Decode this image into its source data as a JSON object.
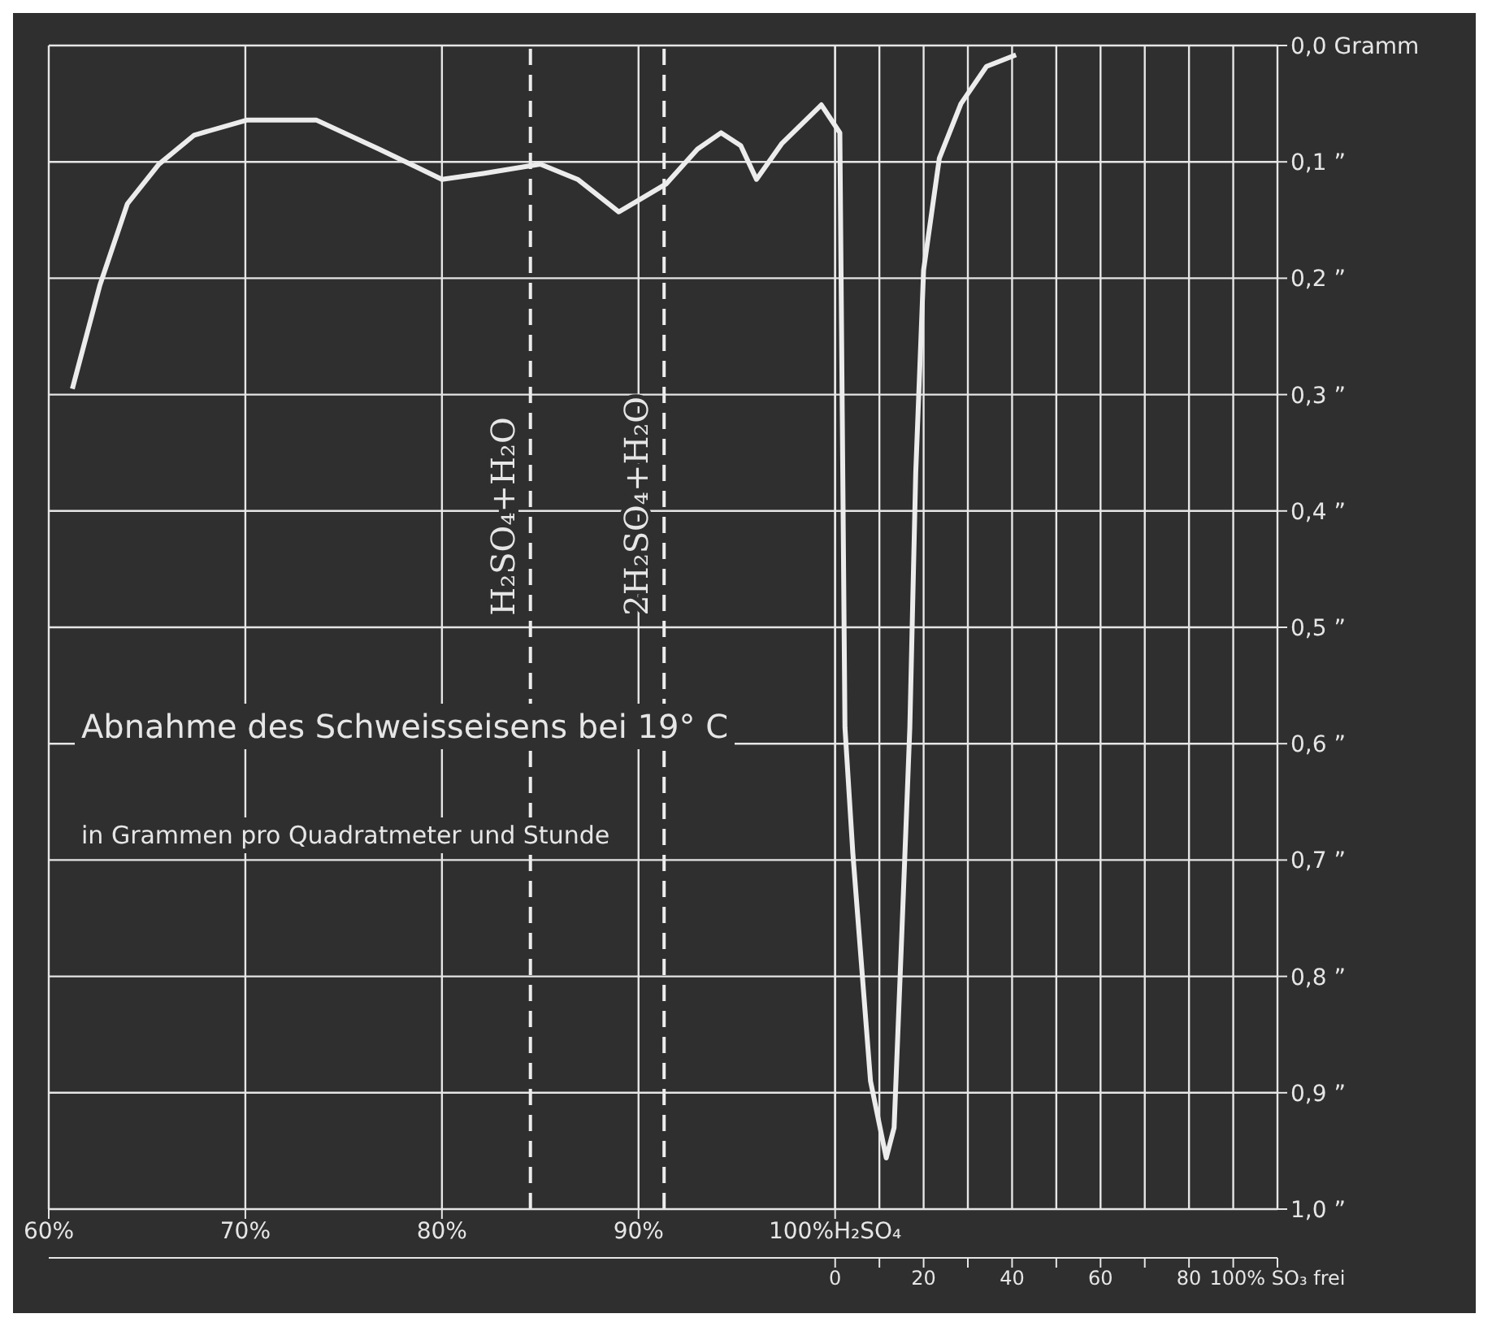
{
  "chart_data": {
    "type": "line",
    "annotations": [
      "Abnahme des Schweisseisens bei 19° C",
      "in Grammen pro Quadratmeter und Stunde"
    ],
    "x": [
      61.2,
      62.6,
      64.0,
      65.6,
      67.4,
      70.1,
      73.6,
      76.8,
      80.0,
      82.1,
      85.0,
      86.9,
      89.0,
      91.4,
      93.0,
      94.2,
      95.2,
      96.0,
      97.3,
      99.3,
      100.24,
      100.3,
      100.5,
      100.9,
      101.8,
      102.6,
      103.0,
      103.4,
      103.8,
      104.1,
      104.5,
      105.3,
      106.4,
      107.7,
      109.2
    ],
    "series": [
      {
        "color": "#ececec",
        "values": [
          0.295,
          0.206,
          0.136,
          0.102,
          0.077,
          0.064,
          0.064,
          0.089,
          0.115,
          0.11,
          0.102,
          0.115,
          0.143,
          0.119,
          0.089,
          0.075,
          0.086,
          0.115,
          0.084,
          0.051,
          0.075,
          0.193,
          0.586,
          0.694,
          0.89,
          0.956,
          0.93,
          0.76,
          0.586,
          0.367,
          0.193,
          0.097,
          0.05,
          0.018,
          0.008
        ]
      }
    ],
    "xlim": [
      60,
      122.5
    ],
    "xticks": [
      {
        "value": 60,
        "label": "60%"
      },
      {
        "value": 70,
        "label": "70%"
      },
      {
        "value": 80,
        "label": "80%"
      },
      {
        "value": 90,
        "label": "90%"
      },
      {
        "value": 100,
        "label": "100%H₂SO₄"
      }
    ],
    "x2lim": [
      -177.8,
      100
    ],
    "x2ticks": [
      0,
      {
        "value": 10,
        "label": null
      },
      20,
      {
        "value": 30,
        "label": null
      },
      40,
      {
        "value": 50,
        "label": null
      },
      60,
      {
        "value": 70,
        "label": null
      },
      80,
      {
        "value": 90,
        "label": null
      },
      {
        "value": 100,
        "label": "100% SO₃ frei"
      }
    ],
    "ylim": [
      1.0,
      0.0
    ],
    "yticks": [
      {
        "value": 0,
        "label": "0,0 Gramm"
      },
      {
        "value": 0.1,
        "label": "0,1 ”"
      },
      {
        "value": 0.2,
        "label": "0,2 ”"
      },
      {
        "value": 0.3,
        "label": "0,3 ”"
      },
      {
        "value": 0.4,
        "label": "0,4 ”"
      },
      {
        "value": 0.5,
        "label": "0,5 ”"
      },
      {
        "value": 0.6,
        "label": "0,6 ”"
      },
      {
        "value": 0.7,
        "label": "0,7 ”"
      },
      {
        "value": 0.8,
        "label": "0,8 ”"
      },
      {
        "value": 0.9,
        "label": "0,9 ”"
      },
      {
        "value": 1.0,
        "label": "1,0 ”"
      }
    ],
    "ref_lines": [
      {
        "axis": "x",
        "value": 84.5,
        "label": "H₂SO₄+H₂O",
        "color": "#ececec",
        "line_style": "dashed"
      },
      {
        "axis": "x",
        "value": 91.3,
        "label": "2H₂SO₄+H₂O",
        "color": "#ececec",
        "line_style": "dashed"
      }
    ],
    "grid": true,
    "marker": "none",
    "line_style": "solid"
  }
}
